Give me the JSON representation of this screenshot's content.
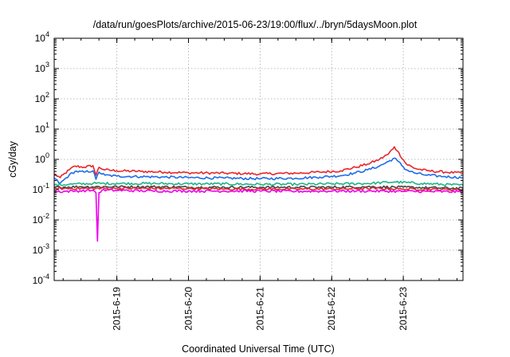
{
  "chart_data": {
    "type": "line",
    "title": "/data/run/goesPlots/archive/2015-06-23/19:00/flux/../bryn/5daysMoon.plot",
    "xlabel": "Coordinated Universal Time (UTC)",
    "ylabel": "cGy/day",
    "yscale": "log",
    "grid": true,
    "legend": "none",
    "xlim": [
      "2015-06-18T03:00",
      "2015-06-23T20:00"
    ],
    "ylim": [
      0.0001,
      10000
    ],
    "x_ticks": [
      "2015-6-19",
      "2015-6-20",
      "2015-6-21",
      "2015-6-22",
      "2015-6-23"
    ],
    "y_ticks": [
      {
        "value": 0.0001,
        "label": "10",
        "exp": "-4"
      },
      {
        "value": 0.001,
        "label": "10",
        "exp": "-3"
      },
      {
        "value": 0.01,
        "label": "10",
        "exp": "-2"
      },
      {
        "value": 0.1,
        "label": "10",
        "exp": "-1"
      },
      {
        "value": 1,
        "label": "10",
        "exp": "0"
      },
      {
        "value": 10,
        "label": "10",
        "exp": "1"
      },
      {
        "value": 100,
        "label": "10",
        "exp": "2"
      },
      {
        "value": 1000,
        "label": "10",
        "exp": "3"
      },
      {
        "value": 10000,
        "label": "10",
        "exp": "4"
      }
    ],
    "series": [
      {
        "color": "#e8262a",
        "points": [
          [
            "2015-06-18T03:00",
            0.33
          ],
          [
            "2015-06-18T05:00",
            0.25
          ],
          [
            "2015-06-18T08:00",
            0.45
          ],
          [
            "2015-06-18T10:00",
            0.6
          ],
          [
            "2015-06-18T13:00",
            0.55
          ],
          [
            "2015-06-18T16:00",
            0.62
          ],
          [
            "2015-06-18T17:00",
            0.3
          ],
          [
            "2015-06-18T18:00",
            0.55
          ],
          [
            "2015-06-18T20:00",
            0.45
          ],
          [
            "2015-06-19T00:00",
            0.42
          ],
          [
            "2015-06-19T08:00",
            0.4
          ],
          [
            "2015-06-19T16:00",
            0.38
          ],
          [
            "2015-06-20T00:00",
            0.36
          ],
          [
            "2015-06-20T12:00",
            0.35
          ],
          [
            "2015-06-21T00:00",
            0.33
          ],
          [
            "2015-06-21T12:00",
            0.35
          ],
          [
            "2015-06-21T20:00",
            0.38
          ],
          [
            "2015-06-22T03:00",
            0.42
          ],
          [
            "2015-06-22T08:00",
            0.55
          ],
          [
            "2015-06-22T12:00",
            0.7
          ],
          [
            "2015-06-22T16:00",
            1.0
          ],
          [
            "2015-06-22T19:00",
            1.5
          ],
          [
            "2015-06-22T21:00",
            2.6
          ],
          [
            "2015-06-22T22:00",
            1.9
          ],
          [
            "2015-06-23T01:00",
            0.7
          ],
          [
            "2015-06-23T04:00",
            0.5
          ],
          [
            "2015-06-23T08:00",
            0.42
          ],
          [
            "2015-06-23T14:00",
            0.38
          ],
          [
            "2015-06-23T20:00",
            0.35
          ]
        ]
      },
      {
        "color": "#1c6de8",
        "points": [
          [
            "2015-06-18T03:00",
            0.24
          ],
          [
            "2015-06-18T05:00",
            0.16
          ],
          [
            "2015-06-18T08:00",
            0.3
          ],
          [
            "2015-06-18T10:00",
            0.4
          ],
          [
            "2015-06-18T13:00",
            0.38
          ],
          [
            "2015-06-18T16:00",
            0.42
          ],
          [
            "2015-06-18T17:00",
            0.22
          ],
          [
            "2015-06-18T18:00",
            0.38
          ],
          [
            "2015-06-18T20:00",
            0.3
          ],
          [
            "2015-06-19T00:00",
            0.28
          ],
          [
            "2015-06-19T08:00",
            0.27
          ],
          [
            "2015-06-19T16:00",
            0.26
          ],
          [
            "2015-06-20T00:00",
            0.25
          ],
          [
            "2015-06-20T12:00",
            0.24
          ],
          [
            "2015-06-21T00:00",
            0.23
          ],
          [
            "2015-06-21T12:00",
            0.24
          ],
          [
            "2015-06-21T20:00",
            0.26
          ],
          [
            "2015-06-22T03:00",
            0.29
          ],
          [
            "2015-06-22T08:00",
            0.36
          ],
          [
            "2015-06-22T12:00",
            0.45
          ],
          [
            "2015-06-22T16:00",
            0.6
          ],
          [
            "2015-06-22T19:00",
            0.85
          ],
          [
            "2015-06-22T21:00",
            1.1
          ],
          [
            "2015-06-22T22:00",
            0.9
          ],
          [
            "2015-06-23T01:00",
            0.45
          ],
          [
            "2015-06-23T04:00",
            0.35
          ],
          [
            "2015-06-23T08:00",
            0.3
          ],
          [
            "2015-06-23T14:00",
            0.27
          ],
          [
            "2015-06-23T20:00",
            0.25
          ]
        ]
      },
      {
        "color": "#1fb489",
        "points": [
          [
            "2015-06-18T03:00",
            0.14
          ],
          [
            "2015-06-18T08:00",
            0.15
          ],
          [
            "2015-06-18T16:00",
            0.16
          ],
          [
            "2015-06-19T00:00",
            0.16
          ],
          [
            "2015-06-19T12:00",
            0.16
          ],
          [
            "2015-06-20T00:00",
            0.155
          ],
          [
            "2015-06-20T12:00",
            0.155
          ],
          [
            "2015-06-21T00:00",
            0.15
          ],
          [
            "2015-06-21T12:00",
            0.15
          ],
          [
            "2015-06-22T00:00",
            0.155
          ],
          [
            "2015-06-22T12:00",
            0.16
          ],
          [
            "2015-06-22T21:00",
            0.18
          ],
          [
            "2015-06-23T06:00",
            0.16
          ],
          [
            "2015-06-23T20:00",
            0.14
          ]
        ]
      },
      {
        "color": "#444444",
        "points": [
          [
            "2015-06-18T03:00",
            0.12
          ],
          [
            "2015-06-18T12:00",
            0.125
          ],
          [
            "2015-06-19T00:00",
            0.125
          ],
          [
            "2015-06-19T12:00",
            0.125
          ],
          [
            "2015-06-20T00:00",
            0.12
          ],
          [
            "2015-06-20T12:00",
            0.12
          ],
          [
            "2015-06-21T00:00",
            0.12
          ],
          [
            "2015-06-21T12:00",
            0.12
          ],
          [
            "2015-06-22T00:00",
            0.12
          ],
          [
            "2015-06-22T12:00",
            0.125
          ],
          [
            "2015-06-23T00:00",
            0.12
          ],
          [
            "2015-06-23T20:00",
            0.11
          ]
        ]
      },
      {
        "color": "#e0272a",
        "points": [
          [
            "2015-06-18T03:00",
            0.11
          ],
          [
            "2015-06-18T12:00",
            0.11
          ],
          [
            "2015-06-19T00:00",
            0.11
          ],
          [
            "2015-06-19T12:00",
            0.11
          ],
          [
            "2015-06-20T00:00",
            0.11
          ],
          [
            "2015-06-20T12:00",
            0.105
          ],
          [
            "2015-06-21T00:00",
            0.105
          ],
          [
            "2015-06-21T12:00",
            0.105
          ],
          [
            "2015-06-22T00:00",
            0.105
          ],
          [
            "2015-06-22T12:00",
            0.11
          ],
          [
            "2015-06-23T00:00",
            0.105
          ],
          [
            "2015-06-23T20:00",
            0.1
          ]
        ]
      },
      {
        "color": "#ee00ee",
        "points": [
          [
            "2015-06-18T03:00",
            0.085
          ],
          [
            "2015-06-18T10:00",
            0.09
          ],
          [
            "2015-06-18T16:00",
            0.095
          ],
          [
            "2015-06-18T17:00",
            0.08
          ],
          [
            "2015-06-18T17:30",
            0.002
          ],
          [
            "2015-06-18T18:00",
            0.08
          ],
          [
            "2015-06-18T19:00",
            0.095
          ],
          [
            "2015-06-19T00:00",
            0.095
          ],
          [
            "2015-06-19T12:00",
            0.09
          ],
          [
            "2015-06-20T00:00",
            0.09
          ],
          [
            "2015-06-20T12:00",
            0.09
          ],
          [
            "2015-06-21T00:00",
            0.09
          ],
          [
            "2015-06-21T12:00",
            0.088
          ],
          [
            "2015-06-22T00:00",
            0.09
          ],
          [
            "2015-06-22T12:00",
            0.09
          ],
          [
            "2015-06-23T00:00",
            0.088
          ],
          [
            "2015-06-23T20:00",
            0.085
          ]
        ]
      }
    ]
  }
}
